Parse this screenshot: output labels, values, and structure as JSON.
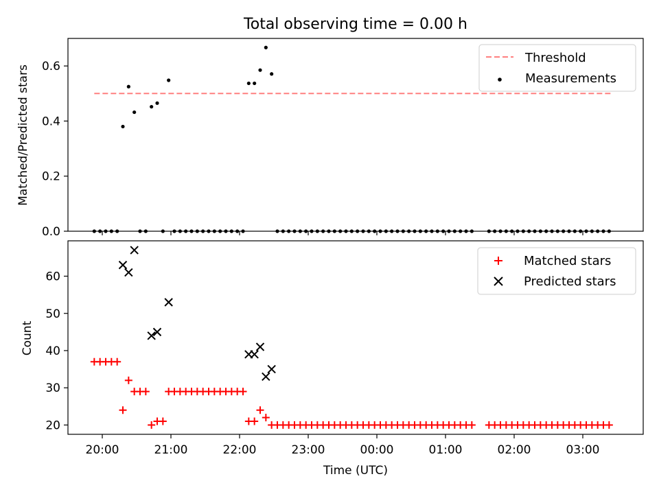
{
  "figure": {
    "title": "Total observing time = 0.00 h",
    "xlabel": "Time (UTC)"
  },
  "chart_data": [
    {
      "type": "scatter",
      "ylabel": "Matched/Predicted stars",
      "ylim": [
        0,
        0.7
      ],
      "yticks": [
        "0.0",
        "0.2",
        "0.4",
        "0.6"
      ],
      "ytick_values": [
        0,
        0.2,
        0.4,
        0.6
      ],
      "threshold": {
        "name": "Threshold",
        "value": 0.5,
        "x_start": "19:53",
        "x_end": "03:25",
        "color": "#ff7f7f"
      },
      "series": [
        {
          "name": "Measurements",
          "color": "#000000",
          "x": [
            "19:53",
            "19:58",
            "20:03",
            "20:08",
            "20:13",
            "20:18",
            "20:23",
            "20:28",
            "20:33",
            "20:38",
            "20:43",
            "20:48",
            "20:53",
            "20:58",
            "21:03",
            "21:08",
            "21:13",
            "21:18",
            "21:23",
            "21:28",
            "21:33",
            "21:38",
            "21:43",
            "21:48",
            "21:53",
            "21:58",
            "22:03",
            "22:08",
            "22:13",
            "22:18",
            "22:23",
            "22:28",
            "22:33",
            "22:38",
            "22:43",
            "22:48",
            "22:53",
            "22:58",
            "23:03",
            "23:08",
            "23:13",
            "23:18",
            "23:23",
            "23:28",
            "23:33",
            "23:38",
            "23:43",
            "23:48",
            "23:53",
            "23:58",
            "00:03",
            "00:08",
            "00:13",
            "00:18",
            "00:23",
            "00:28",
            "00:33",
            "00:38",
            "00:43",
            "00:48",
            "00:53",
            "00:58",
            "01:03",
            "01:08",
            "01:13",
            "01:18",
            "01:23",
            "01:38",
            "01:43",
            "01:48",
            "01:53",
            "01:58",
            "02:03",
            "02:08",
            "02:13",
            "02:18",
            "02:23",
            "02:28",
            "02:33",
            "02:38",
            "02:43",
            "02:48",
            "02:53",
            "02:58",
            "03:03",
            "03:08",
            "03:13",
            "03:18",
            "03:23"
          ],
          "y": [
            0,
            0,
            0,
            0,
            0,
            0.38,
            0.525,
            0.432,
            0,
            0,
            0.452,
            0.465,
            0,
            0.548,
            0,
            0,
            0,
            0,
            0,
            0,
            0,
            0,
            0,
            0,
            0,
            0,
            0,
            0.537,
            0.537,
            0.585,
            0.667,
            0.571,
            0,
            0,
            0,
            0,
            0,
            0,
            0,
            0,
            0,
            0,
            0,
            0,
            0,
            0,
            0,
            0,
            0,
            0,
            0,
            0,
            0,
            0,
            0,
            0,
            0,
            0,
            0,
            0,
            0,
            0,
            0,
            0,
            0,
            0,
            0,
            0,
            0,
            0,
            0,
            0,
            0,
            0,
            0,
            0,
            0,
            0,
            0,
            0,
            0,
            0,
            0,
            0,
            0,
            0,
            0,
            0,
            0
          ]
        }
      ]
    },
    {
      "type": "scatter",
      "ylabel": "Count",
      "ylim": [
        17.5,
        69.5
      ],
      "yticks": [
        "20",
        "30",
        "40",
        "50",
        "60"
      ],
      "ytick_values": [
        20,
        30,
        40,
        50,
        60
      ],
      "xticks": [
        "20:00",
        "21:00",
        "22:00",
        "23:00",
        "00:00",
        "01:00",
        "02:00",
        "03:00"
      ],
      "series": [
        {
          "name": "Matched stars",
          "color": "#ff0000",
          "marker": "+",
          "x": [
            "19:53",
            "19:58",
            "20:03",
            "20:08",
            "20:13",
            "20:18",
            "20:23",
            "20:28",
            "20:33",
            "20:38",
            "20:43",
            "20:48",
            "20:53",
            "20:58",
            "21:03",
            "21:08",
            "21:13",
            "21:18",
            "21:23",
            "21:28",
            "21:33",
            "21:38",
            "21:43",
            "21:48",
            "21:53",
            "21:58",
            "22:03",
            "22:08",
            "22:13",
            "22:18",
            "22:23",
            "22:28",
            "22:33",
            "22:38",
            "22:43",
            "22:48",
            "22:53",
            "22:58",
            "23:03",
            "23:08",
            "23:13",
            "23:18",
            "23:23",
            "23:28",
            "23:33",
            "23:38",
            "23:43",
            "23:48",
            "23:53",
            "23:58",
            "00:03",
            "00:08",
            "00:13",
            "00:18",
            "00:23",
            "00:28",
            "00:33",
            "00:38",
            "00:43",
            "00:48",
            "00:53",
            "00:58",
            "01:03",
            "01:08",
            "01:13",
            "01:18",
            "01:23",
            "01:38",
            "01:43",
            "01:48",
            "01:53",
            "01:58",
            "02:03",
            "02:08",
            "02:13",
            "02:18",
            "02:23",
            "02:28",
            "02:33",
            "02:38",
            "02:43",
            "02:48",
            "02:53",
            "02:58",
            "03:03",
            "03:08",
            "03:13",
            "03:18",
            "03:23"
          ],
          "y": [
            37,
            37,
            37,
            37,
            37,
            24,
            32,
            29,
            29,
            29,
            20,
            21,
            21,
            29,
            29,
            29,
            29,
            29,
            29,
            29,
            29,
            29,
            29,
            29,
            29,
            29,
            29,
            21,
            21,
            24,
            22,
            20,
            20,
            20,
            20,
            20,
            20,
            20,
            20,
            20,
            20,
            20,
            20,
            20,
            20,
            20,
            20,
            20,
            20,
            20,
            20,
            20,
            20,
            20,
            20,
            20,
            20,
            20,
            20,
            20,
            20,
            20,
            20,
            20,
            20,
            20,
            20,
            20,
            20,
            20,
            20,
            20,
            20,
            20,
            20,
            20,
            20,
            20,
            20,
            20,
            20,
            20,
            20,
            20,
            20,
            20,
            20,
            20,
            20
          ]
        },
        {
          "name": "Predicted stars",
          "color": "#000000",
          "marker": "x",
          "x": [
            "20:18",
            "20:23",
            "20:28",
            "20:43",
            "20:48",
            "20:58",
            "22:08",
            "22:13",
            "22:18",
            "22:23",
            "22:28"
          ],
          "y": [
            63,
            61,
            67,
            44,
            45,
            53,
            39,
            39,
            41,
            33,
            35
          ]
        }
      ]
    }
  ]
}
